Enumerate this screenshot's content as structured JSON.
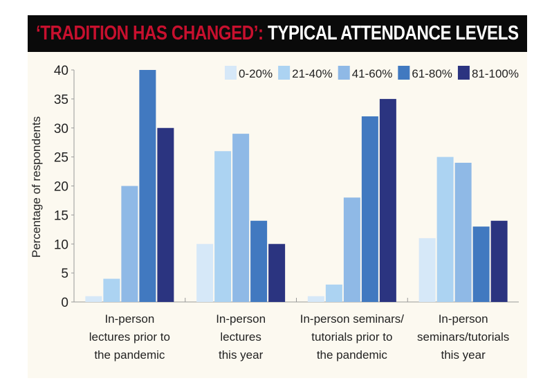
{
  "chart_data": {
    "type": "bar",
    "title_highlight": "‘TRADITION HAS CHANGED’:",
    "title": "TYPICAL ATTENDANCE LEVELS",
    "xlabel": "",
    "ylabel": "Percentage of respondents",
    "ylim": [
      0,
      40
    ],
    "yticks": [
      0,
      5,
      10,
      15,
      20,
      25,
      30,
      35,
      40
    ],
    "grid": false,
    "legend": "top-right",
    "categories": [
      [
        "In-person",
        "lectures prior to",
        "the pandemic"
      ],
      [
        "In-person",
        "lectures",
        "this year"
      ],
      [
        "In-person seminars/",
        "tutorials prior to",
        "the pandemic"
      ],
      [
        "In-person",
        "seminars/tutorials",
        "this year"
      ]
    ],
    "series": [
      {
        "name": "0-20%",
        "color": "#d6e8f8",
        "values": [
          1,
          10,
          1,
          11
        ]
      },
      {
        "name": "21-40%",
        "color": "#acd3f2",
        "values": [
          4,
          26,
          3,
          25
        ]
      },
      {
        "name": "41-60%",
        "color": "#8fb9e6",
        "values": [
          20,
          29,
          18,
          24
        ]
      },
      {
        "name": "61-80%",
        "color": "#4179c0",
        "values": [
          40,
          14,
          32,
          13
        ]
      },
      {
        "name": "81-100%",
        "color": "#2b3480",
        "values": [
          30,
          10,
          35,
          14
        ]
      }
    ]
  }
}
